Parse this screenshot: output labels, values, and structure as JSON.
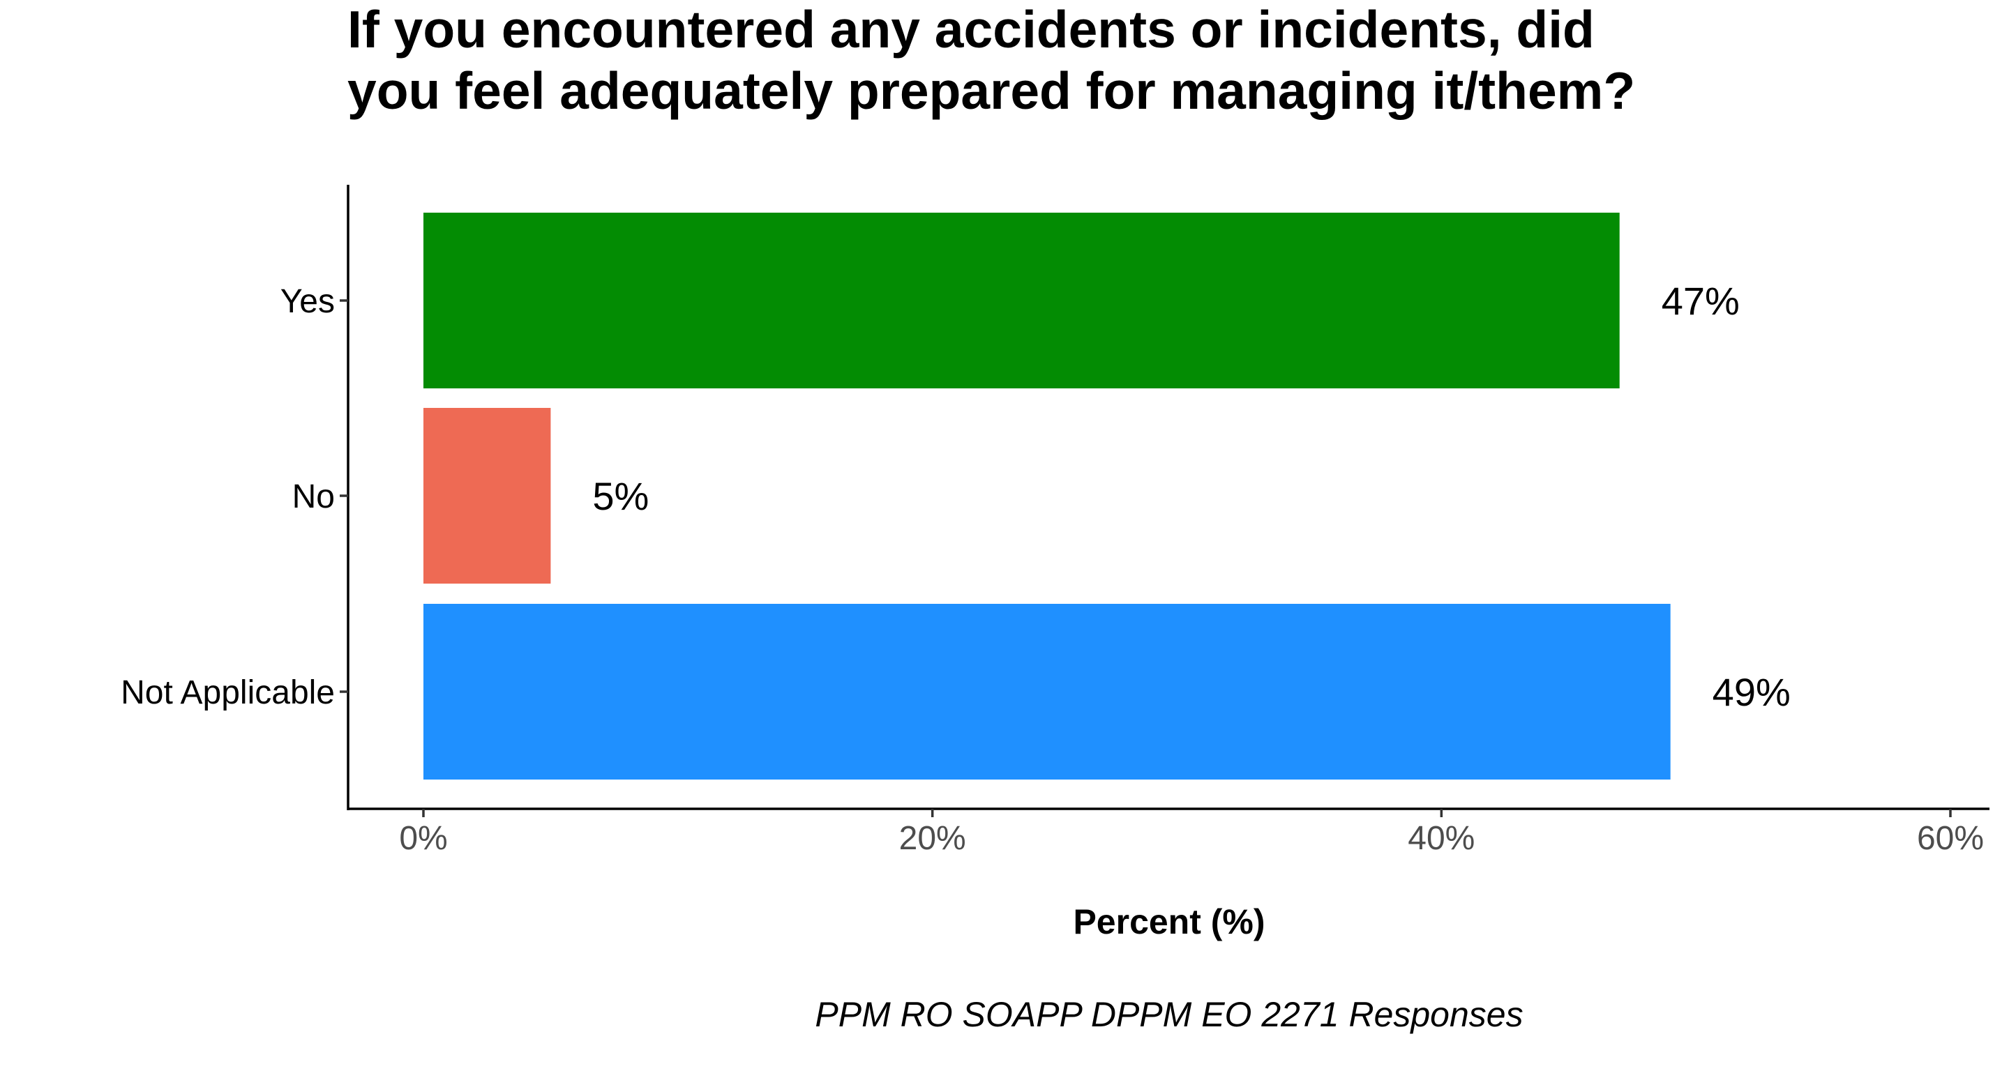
{
  "chart_data": {
    "type": "bar",
    "orientation": "horizontal",
    "title_lines": [
      "If you encountered any accidents or incidents, did",
      "you feel adequately prepared for managing it/them?"
    ],
    "categories": [
      "Yes",
      "No",
      "Not Applicable"
    ],
    "values": [
      47,
      5,
      49
    ],
    "data_labels": [
      "47%",
      "5%",
      "49%"
    ],
    "colors": [
      "#038C03",
      "#EE6A54",
      "#1F90FF"
    ],
    "xlabel": "Percent (%)",
    "xlim": [
      0,
      60
    ],
    "x_ticks": [
      0,
      20,
      40,
      60
    ],
    "x_tick_labels": [
      "0%",
      "20%",
      "40%",
      "60%"
    ],
    "caption": "PPM RO SOAPP DPPM EO 2271 Responses",
    "grid": false,
    "legend": "none"
  }
}
